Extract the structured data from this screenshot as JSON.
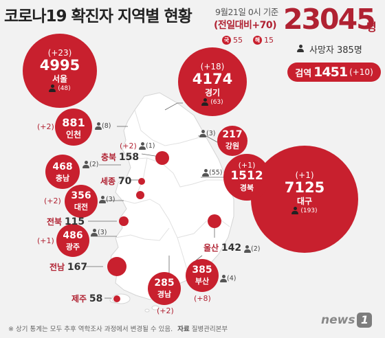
{
  "header": {
    "title": "코로나19 확진자 지역별 현황",
    "date": "9월21일 0시 기준",
    "daily_change": "(전일대비+70)",
    "total": "23045",
    "total_unit": "명",
    "domestic_icon": "국",
    "domestic_value": "55",
    "overseas_icon": "해",
    "overseas_value": "15",
    "deaths": "사망자 385명",
    "quarantine_label": "검역",
    "quarantine_value": "1451",
    "quarantine_change": "(+10)"
  },
  "regions": {
    "seoul": {
      "name": "서울",
      "cases": "4995",
      "change": "(+23)",
      "deaths": "(48)"
    },
    "gyeonggi": {
      "name": "경기",
      "cases": "4174",
      "change": "(+18)",
      "deaths": "(63)"
    },
    "incheon": {
      "name": "인천",
      "cases": "881",
      "change": "(+2)",
      "deaths": "(8)"
    },
    "gangwon": {
      "name": "강원",
      "cases": "217",
      "deaths": "(3)"
    },
    "chungbuk": {
      "name": "충북",
      "cases": "158",
      "change": "(+2)",
      "deaths": "(1)"
    },
    "chungnam": {
      "name": "충남",
      "cases": "468",
      "deaths": "(2)"
    },
    "sejong": {
      "name": "세종",
      "cases": "70"
    },
    "daejeon": {
      "name": "대전",
      "cases": "356",
      "change": "(+2)",
      "deaths": "(3)"
    },
    "gyeongbuk": {
      "name": "경북",
      "cases": "1512",
      "change": "(+1)",
      "deaths": "(55)"
    },
    "daegu": {
      "name": "대구",
      "cases": "7125",
      "change": "(+1)",
      "deaths": "(193)"
    },
    "jeonbuk": {
      "name": "전북",
      "cases": "115"
    },
    "gwangju": {
      "name": "광주",
      "cases": "486",
      "change": "(+1)",
      "deaths": "(3)"
    },
    "jeonnam": {
      "name": "전남",
      "cases": "167"
    },
    "ulsan": {
      "name": "울산",
      "cases": "142",
      "deaths": "(2)"
    },
    "busan": {
      "name": "부산",
      "cases": "385",
      "change": "(+8)",
      "deaths": "(4)"
    },
    "gyeongnam": {
      "name": "경남",
      "cases": "285",
      "change": "(+2)"
    },
    "jeju": {
      "name": "제주",
      "cases": "58"
    }
  },
  "footer": {
    "note": "※ 상기 통계는 모두 추후 역학조사 과정에서 변경될 수 있음.",
    "source_label": "자료",
    "source": "질병관리본부"
  },
  "logo": {
    "text": "news",
    "mark": "1"
  },
  "colors": {
    "accent": "#c8202e",
    "accent_text": "#b02232",
    "map_fill": "#ffffff",
    "map_line": "#d0d0d0",
    "background": "#f2f2f2"
  },
  "icons": {
    "person": "person-icon"
  }
}
